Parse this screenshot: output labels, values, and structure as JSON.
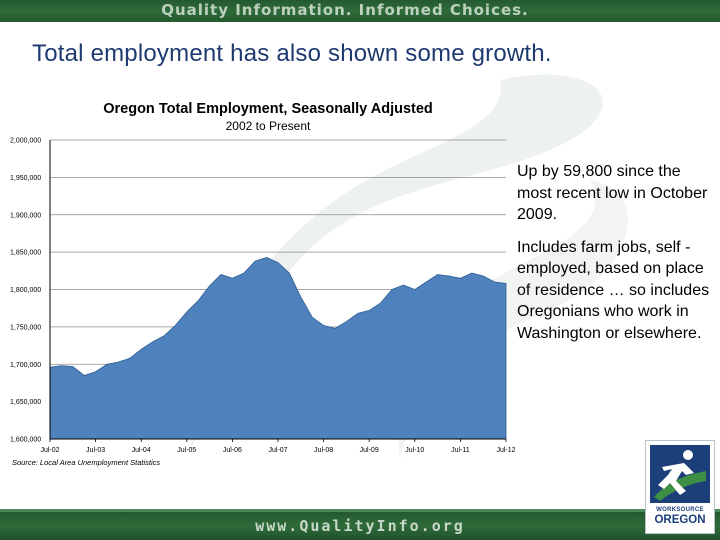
{
  "banner": {
    "slogan": "Quality Information. Informed Choices."
  },
  "slide": {
    "headline": "Total employment has also shown some growth.",
    "bullets": [
      "Up by 59,800 since the most recent low in October 2009.",
      "Includes farm jobs, self -employed, based on place of residence … so includes Oregonians who work in Washington or elsewhere."
    ]
  },
  "footer": {
    "url": "www.QualityInfo.org",
    "logo": {
      "line1": "WORKSOURCE",
      "line2": "OREGON",
      "icon": "runner-icon"
    }
  },
  "colors": {
    "banner": "#2f6b3a",
    "headline": "#1f3a70",
    "area": "#4f81bd",
    "area_edge": "#2e5e94",
    "logo_blue": "#1c3f7a",
    "logo_green": "#3c8f44"
  },
  "chart_data": {
    "type": "area",
    "title": "Oregon Total Employment, Seasonally Adjusted",
    "subtitle": "2002 to Present",
    "source": "Source: Local Area Unemployment Statistics",
    "xlabel": "",
    "ylabel": "",
    "ylim": [
      1600000,
      2000000
    ],
    "yticks": [
      1600000,
      1650000,
      1700000,
      1750000,
      1800000,
      1850000,
      1900000,
      1950000,
      2000000
    ],
    "ytick_labels": [
      "1,600,000",
      "1,650,000",
      "1,700,000",
      "1,750,000",
      "1,800,000",
      "1,850,000",
      "1,900,000",
      "1,950,000",
      "2,000,000"
    ],
    "xlim": [
      2002.5,
      2012.5
    ],
    "xticks": [
      2002.5,
      2003.5,
      2004.5,
      2005.5,
      2006.5,
      2007.5,
      2008.5,
      2009.5,
      2010.5,
      2011.5,
      2012.5
    ],
    "xtick_labels": [
      "Jul-02",
      "Jul-03",
      "Jul-04",
      "Jul-05",
      "Jul-06",
      "Jul-07",
      "Jul-08",
      "Jul-09",
      "Jul-10",
      "Jul-11",
      "Jul-12"
    ],
    "grid": {
      "horizontal": true,
      "vertical": false
    },
    "series": [
      {
        "x": [
          2002.5,
          2002.75,
          2003.0,
          2003.25,
          2003.5,
          2003.75,
          2004.0,
          2004.25,
          2004.5,
          2004.75,
          2005.0,
          2005.25,
          2005.5,
          2005.75,
          2006.0,
          2006.25,
          2006.5,
          2006.75,
          2007.0,
          2007.25,
          2007.5,
          2007.75,
          2008.0,
          2008.25,
          2008.5,
          2008.75,
          2009.0,
          2009.25,
          2009.5,
          2009.75,
          2010.0,
          2010.25,
          2010.5,
          2010.75,
          2011.0,
          2011.25,
          2011.5,
          2011.75,
          2012.0,
          2012.25,
          2012.5
        ],
        "values": [
          1696000,
          1698000,
          1697000,
          1685000,
          1690000,
          1700000,
          1703000,
          1708000,
          1720000,
          1730000,
          1738000,
          1752000,
          1770000,
          1785000,
          1805000,
          1820000,
          1815000,
          1822000,
          1838000,
          1843000,
          1836000,
          1822000,
          1790000,
          1763000,
          1752000,
          1748000,
          1757000,
          1768000,
          1772000,
          1782000,
          1800000,
          1806000,
          1800000,
          1810000,
          1820000,
          1818000,
          1815000,
          1822000,
          1818000,
          1810000,
          1808000
        ]
      }
    ]
  }
}
